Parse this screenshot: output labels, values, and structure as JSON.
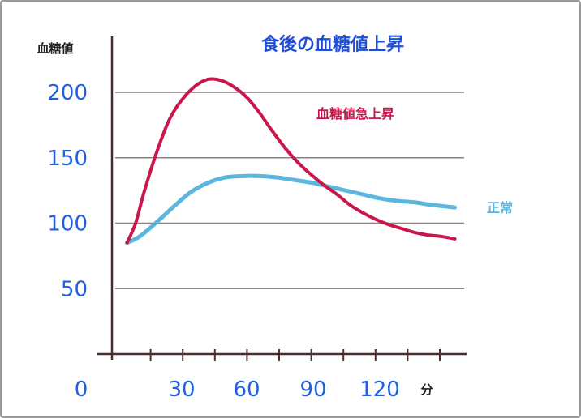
{
  "chart_data": {
    "type": "line",
    "title": "食後の血糖値上昇",
    "ylabel": "血糖値",
    "xunit": "分",
    "x_ticks": [
      0,
      30,
      60,
      90,
      120
    ],
    "y_ticks": [
      50,
      100,
      150,
      200
    ],
    "xlim": [
      -14,
      157
    ],
    "ylim": [
      0,
      250
    ],
    "grid": true,
    "colors": {
      "title": "#1f4fd8",
      "tick": "#1f5fe0",
      "axis_title": "#222222",
      "unit": "#222222",
      "grid": "#8c7f7f",
      "axis": "#4a2e2e"
    },
    "series": [
      {
        "name": "血糖値急上昇",
        "color": "#c8174a",
        "x": [
          4,
          8,
          12,
          18,
          24,
          30,
          36,
          42,
          48,
          54,
          60,
          66,
          72,
          78,
          84,
          90,
          96,
          102,
          108,
          114,
          120,
          126,
          132,
          138,
          144,
          150,
          157
        ],
        "y": [
          85,
          100,
          124,
          155,
          180,
          195,
          205,
          210,
          209,
          204,
          196,
          184,
          170,
          157,
          146,
          137,
          129,
          122,
          114,
          108,
          103,
          99,
          96,
          93,
          91,
          90,
          88
        ]
      },
      {
        "name": "正常",
        "color": "#5bb7de",
        "x": [
          4,
          10,
          18,
          26,
          34,
          42,
          50,
          58,
          66,
          74,
          82,
          90,
          98,
          106,
          114,
          122,
          130,
          138,
          146,
          157
        ],
        "y": [
          85,
          90,
          101,
          113,
          124,
          131,
          135,
          136,
          136,
          135,
          133,
          131,
          128,
          125,
          122,
          119,
          117,
          116,
          114,
          112
        ]
      }
    ]
  }
}
